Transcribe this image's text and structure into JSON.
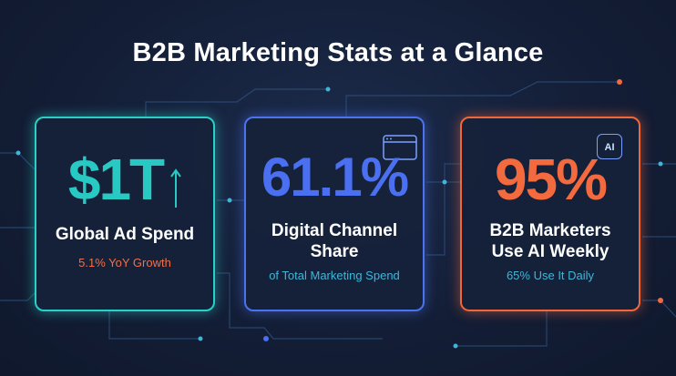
{
  "header": {
    "title": "B2B Marketing Stats at a Glance"
  },
  "cards": [
    {
      "stat": "$1T",
      "label": "Global Ad Spend",
      "sublabel": "5.1% YoY Growth"
    },
    {
      "stat": "61.1%",
      "label": "Digital Channel Share",
      "sublabel": "of Total Marketing Spend"
    },
    {
      "stat": "95%",
      "label": "B2B Marketers Use AI Weekly",
      "sublabel": "65% Use It Daily",
      "icon_label": "AI"
    }
  ]
}
